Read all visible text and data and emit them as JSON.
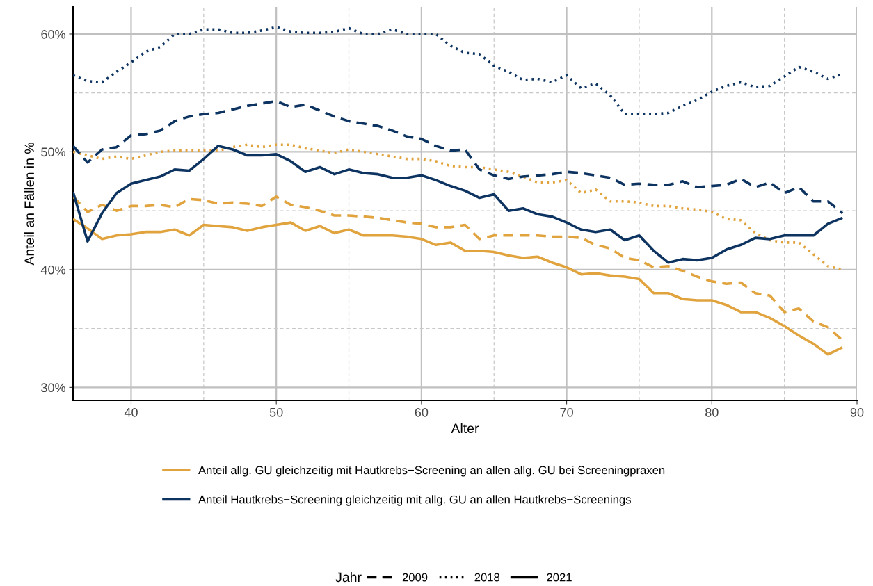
{
  "chart_data": {
    "type": "line",
    "xlabel": "Alter",
    "ylabel": "Anteil an Fällen in %",
    "x": [
      36,
      37,
      38,
      39,
      40,
      41,
      42,
      43,
      44,
      45,
      46,
      47,
      48,
      49,
      50,
      51,
      52,
      53,
      54,
      55,
      56,
      57,
      58,
      59,
      60,
      61,
      62,
      63,
      64,
      65,
      66,
      67,
      68,
      69,
      70,
      71,
      72,
      73,
      74,
      75,
      76,
      77,
      78,
      79,
      80,
      81,
      82,
      83,
      84,
      85,
      86,
      87,
      88,
      89
    ],
    "xlim": [
      36,
      90
    ],
    "xticks": [
      40,
      50,
      60,
      70,
      80,
      90
    ],
    "ylim": [
      28.9,
      62.3
    ],
    "yticks": [
      {
        "value": 30,
        "label": "30%"
      },
      {
        "value": 40,
        "label": "40%"
      },
      {
        "value": 50,
        "label": "50%"
      },
      {
        "value": 60,
        "label": "60%"
      }
    ],
    "grid": true,
    "legend": "bottom",
    "legend_title": "Jahr",
    "annotations": [
      "2009",
      "2018",
      "2021"
    ],
    "series": [
      {
        "color": "#e0a33e",
        "line_style": "dashed",
        "values": [
          46.2,
          44.9,
          45.5,
          45.0,
          45.4,
          45.4,
          45.5,
          45.3,
          46.0,
          45.9,
          45.6,
          45.7,
          45.6,
          45.4,
          46.2,
          45.5,
          45.3,
          45.0,
          44.6,
          44.6,
          44.5,
          44.4,
          44.2,
          44.0,
          43.9,
          43.6,
          43.6,
          43.8,
          42.6,
          42.9,
          42.9,
          42.9,
          42.9,
          42.8,
          42.8,
          42.7,
          42.1,
          41.8,
          41.0,
          40.8,
          40.2,
          40.3,
          39.9,
          39.4,
          39.0,
          38.8,
          38.9,
          38.0,
          37.8,
          36.4,
          36.7,
          35.6,
          35.1,
          34.0
        ]
      },
      {
        "color": "#e0a33e",
        "line_style": "dotted",
        "values": [
          50.0,
          49.7,
          49.4,
          49.6,
          49.4,
          49.7,
          50.0,
          50.1,
          50.1,
          50.1,
          50.1,
          50.4,
          50.6,
          50.4,
          50.6,
          50.6,
          50.3,
          50.1,
          49.9,
          50.2,
          50.0,
          49.8,
          49.6,
          49.4,
          49.4,
          49.2,
          48.8,
          48.7,
          48.7,
          48.5,
          48.3,
          47.9,
          47.4,
          47.4,
          47.6,
          46.5,
          46.8,
          45.8,
          45.8,
          45.7,
          45.4,
          45.4,
          45.2,
          45.1,
          44.9,
          44.3,
          44.2,
          43.1,
          42.5,
          42.3,
          42.3,
          41.3,
          40.3,
          40.0
        ]
      },
      {
        "name": "Anteil allg. GU gleichzeitig mit Hautkrebs−Screening an allen allg. GU bei Screeningpraxen",
        "color": "#e0a33e",
        "line_style": "solid",
        "values": [
          44.3,
          43.5,
          42.6,
          42.9,
          43.0,
          43.2,
          43.2,
          43.4,
          42.9,
          43.8,
          43.7,
          43.6,
          43.3,
          43.6,
          43.8,
          44.0,
          43.3,
          43.7,
          43.1,
          43.4,
          42.9,
          42.9,
          42.9,
          42.8,
          42.6,
          42.1,
          42.3,
          41.6,
          41.6,
          41.5,
          41.2,
          41.0,
          41.1,
          40.6,
          40.2,
          39.6,
          39.7,
          39.5,
          39.4,
          39.2,
          38.0,
          38.0,
          37.5,
          37.4,
          37.4,
          37.0,
          36.4,
          36.4,
          35.9,
          35.2,
          34.4,
          33.7,
          32.8,
          33.4
        ]
      },
      {
        "color": "#0d3361",
        "line_style": "dashed",
        "values": [
          50.5,
          49.1,
          50.2,
          50.4,
          51.4,
          51.5,
          51.8,
          52.6,
          53.0,
          53.2,
          53.3,
          53.6,
          53.9,
          54.1,
          54.3,
          53.8,
          54.0,
          53.5,
          53.0,
          52.6,
          52.4,
          52.2,
          51.8,
          51.3,
          51.1,
          50.5,
          50.1,
          50.2,
          48.5,
          48.0,
          47.7,
          47.9,
          48.0,
          48.1,
          48.3,
          48.2,
          48.0,
          47.8,
          47.2,
          47.3,
          47.2,
          47.2,
          47.5,
          47.0,
          47.1,
          47.2,
          47.7,
          47.0,
          47.4,
          46.5,
          47.0,
          45.8,
          45.8,
          44.8
        ]
      },
      {
        "color": "#0d3361",
        "line_style": "dotted",
        "values": [
          56.5,
          56.0,
          55.9,
          56.8,
          57.6,
          58.5,
          58.9,
          60.0,
          60.0,
          60.4,
          60.4,
          60.1,
          60.1,
          60.3,
          60.6,
          60.2,
          60.1,
          60.1,
          60.2,
          60.5,
          60.0,
          60.0,
          60.4,
          60.0,
          60.0,
          60.0,
          59.0,
          58.4,
          58.3,
          57.3,
          56.8,
          56.1,
          56.2,
          55.9,
          56.5,
          55.4,
          55.8,
          54.8,
          53.2,
          53.2,
          53.2,
          53.3,
          53.9,
          54.4,
          55.1,
          55.6,
          55.9,
          55.5,
          55.6,
          56.4,
          57.2,
          56.8,
          56.2,
          56.6
        ]
      },
      {
        "name": "Anteil Hautkrebs−Screening gleichzeitig mit allg. GU an allen Hautkrebs−Screenings",
        "color": "#0d3361",
        "line_style": "solid",
        "values": [
          46.6,
          42.4,
          44.8,
          46.5,
          47.3,
          47.6,
          47.9,
          48.5,
          48.4,
          49.4,
          50.5,
          50.2,
          49.7,
          49.7,
          49.8,
          49.2,
          48.3,
          48.7,
          48.1,
          48.5,
          48.2,
          48.1,
          47.8,
          47.8,
          48.0,
          47.6,
          47.1,
          46.7,
          46.1,
          46.4,
          45.0,
          45.2,
          44.7,
          44.5,
          44.0,
          43.4,
          43.2,
          43.4,
          42.5,
          42.9,
          41.6,
          40.6,
          40.9,
          40.8,
          41.0,
          41.7,
          42.1,
          42.7,
          42.6,
          42.9,
          42.9,
          42.9,
          43.9,
          44.4
        ]
      }
    ]
  }
}
